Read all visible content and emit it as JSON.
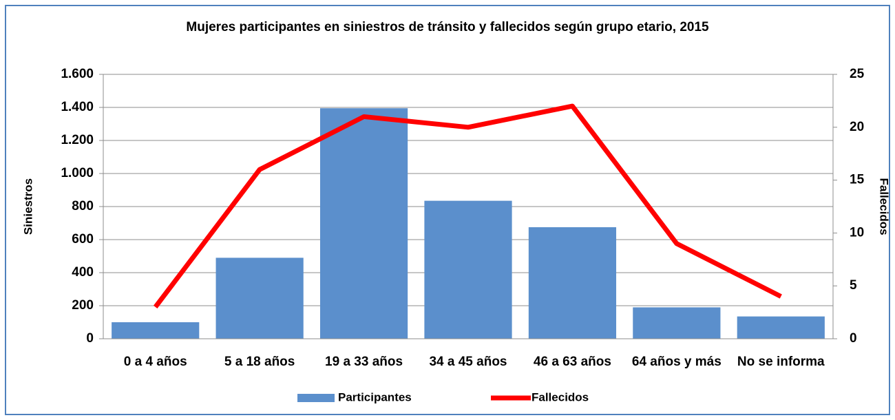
{
  "chart_data": {
    "type": "bar",
    "title": "Mujeres participantes en siniestros de tránsito y fallecidos  según grupo etario, 2015",
    "y_label": "Siniestros",
    "y2_label": "Fallecidos",
    "categories": [
      "0 a 4 años",
      "5 a 18 años",
      "19 a 33 años",
      "34 a 45 años",
      "46 a 63 años",
      "64 años y más",
      "No se informa"
    ],
    "series": [
      {
        "name": "Participantes",
        "type": "bar",
        "color": "#5b8fcc",
        "values": [
          100,
          490,
          1395,
          835,
          675,
          190,
          135
        ]
      },
      {
        "name": "Fallecidos",
        "type": "line",
        "axis": "y2",
        "color": "#ff0000",
        "values": [
          3,
          16,
          21,
          20,
          22,
          9,
          4
        ]
      }
    ],
    "ylim": [
      0,
      1600
    ],
    "yticks": [
      0,
      200,
      400,
      600,
      800,
      {
        "value": 1000,
        "label": "1.000"
      },
      {
        "value": 1200,
        "label": "1.200"
      },
      {
        "value": 1400,
        "label": "1.400"
      },
      {
        "value": 1600,
        "label": "1.600"
      }
    ],
    "y2lim": [
      0,
      25
    ],
    "y2ticks": [
      0,
      5,
      10,
      15,
      20,
      25
    ],
    "grid": true,
    "legend": "bottom"
  }
}
